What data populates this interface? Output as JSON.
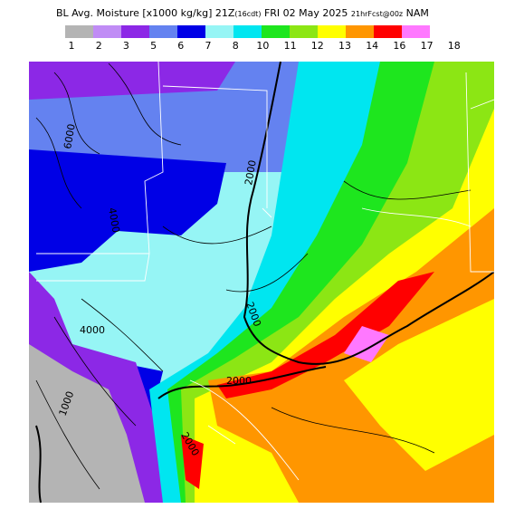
{
  "header": {
    "title_main": "BL Avg. Moisture [x1000 kg/kg] 21Z",
    "title_local": "(16cdt)",
    "title_date": "FRI 02 May 2025",
    "title_fcst": "21hrFcst@00z",
    "title_model": "NAM"
  },
  "colorbar": {
    "labels": [
      "1",
      "2",
      "3",
      "5",
      "6",
      "7",
      "8",
      "10",
      "11",
      "12",
      "13",
      "14",
      "16",
      "17",
      "18"
    ],
    "colors": [
      "#b4b4b4",
      "#c08cf5",
      "#8c28e6",
      "#6482f0",
      "#0000e6",
      "#96f5f5",
      "#00e6f0",
      "#1ee61e",
      "#8ce614",
      "#ffff00",
      "#ff9600",
      "#ff0000",
      "#ff78ff"
    ]
  },
  "map": {
    "contour_labels": [
      "6000",
      "4000",
      "2000",
      "2000",
      "4000",
      "2000",
      "1000",
      "2000"
    ]
  }
}
